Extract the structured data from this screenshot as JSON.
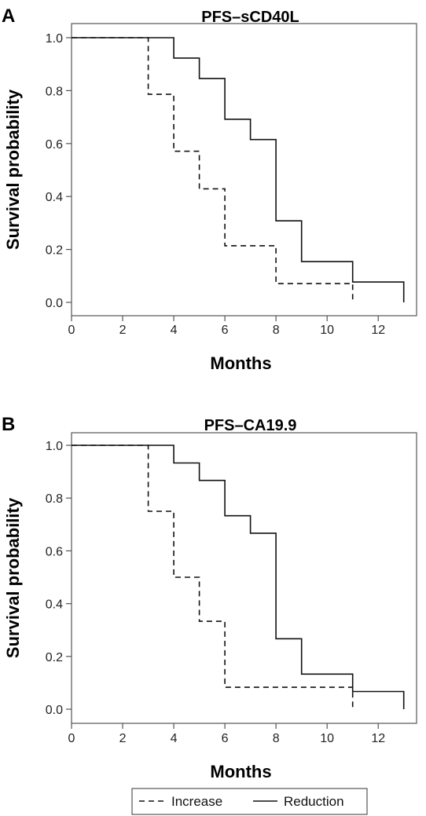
{
  "chart_data": [
    {
      "type": "line",
      "panel_label": "A",
      "title": "PFS–sCD40L",
      "xlabel": "Months",
      "ylabel": "Survival probability",
      "xlim": [
        0,
        13.5
      ],
      "ylim": [
        0,
        1.0
      ],
      "xticks": [
        "0",
        "2",
        "4",
        "6",
        "8",
        "10",
        "12"
      ],
      "yticks": [
        "0.0",
        "0.2",
        "0.4",
        "0.6",
        "0.8",
        "1.0"
      ],
      "grid": false,
      "series": [
        {
          "name": "Increase",
          "line_style": "dashed",
          "points": [
            [
              0,
              1.0
            ],
            [
              3,
              0.786
            ],
            [
              4,
              0.571
            ],
            [
              5,
              0.429
            ],
            [
              6,
              0.214
            ],
            [
              8,
              0.071
            ],
            [
              11,
              0.0
            ]
          ]
        },
        {
          "name": "Reduction",
          "line_style": "solid",
          "points": [
            [
              0,
              1.0
            ],
            [
              4,
              0.923
            ],
            [
              5,
              0.846
            ],
            [
              6,
              0.692
            ],
            [
              7,
              0.615
            ],
            [
              8,
              0.308
            ],
            [
              9,
              0.154
            ],
            [
              11,
              0.077
            ],
            [
              13,
              0.0
            ]
          ]
        }
      ]
    },
    {
      "type": "line",
      "panel_label": "B",
      "title": "PFS–CA19.9",
      "xlabel": "Months",
      "ylabel": "Survival probability",
      "xlim": [
        0,
        13.5
      ],
      "ylim": [
        0,
        1.0
      ],
      "xticks": [
        "0",
        "2",
        "4",
        "6",
        "8",
        "10",
        "12"
      ],
      "yticks": [
        "0.0",
        "0.2",
        "0.4",
        "0.6",
        "0.8",
        "1.0"
      ],
      "grid": false,
      "series": [
        {
          "name": "Increase",
          "line_style": "dashed",
          "points": [
            [
              0,
              1.0
            ],
            [
              3,
              0.75
            ],
            [
              4,
              0.5
            ],
            [
              5,
              0.333
            ],
            [
              6,
              0.083
            ],
            [
              11,
              0.0
            ]
          ]
        },
        {
          "name": "Reduction",
          "line_style": "solid",
          "points": [
            [
              0,
              1.0
            ],
            [
              4,
              0.933
            ],
            [
              5,
              0.867
            ],
            [
              6,
              0.733
            ],
            [
              7,
              0.667
            ],
            [
              8,
              0.267
            ],
            [
              9,
              0.133
            ],
            [
              11,
              0.067
            ],
            [
              13,
              0.0
            ]
          ]
        }
      ]
    }
  ],
  "legend": {
    "placement": "bottom-center",
    "items": [
      {
        "label": "Increase",
        "line_style": "dashed"
      },
      {
        "label": "Reduction",
        "line_style": "solid"
      }
    ]
  }
}
